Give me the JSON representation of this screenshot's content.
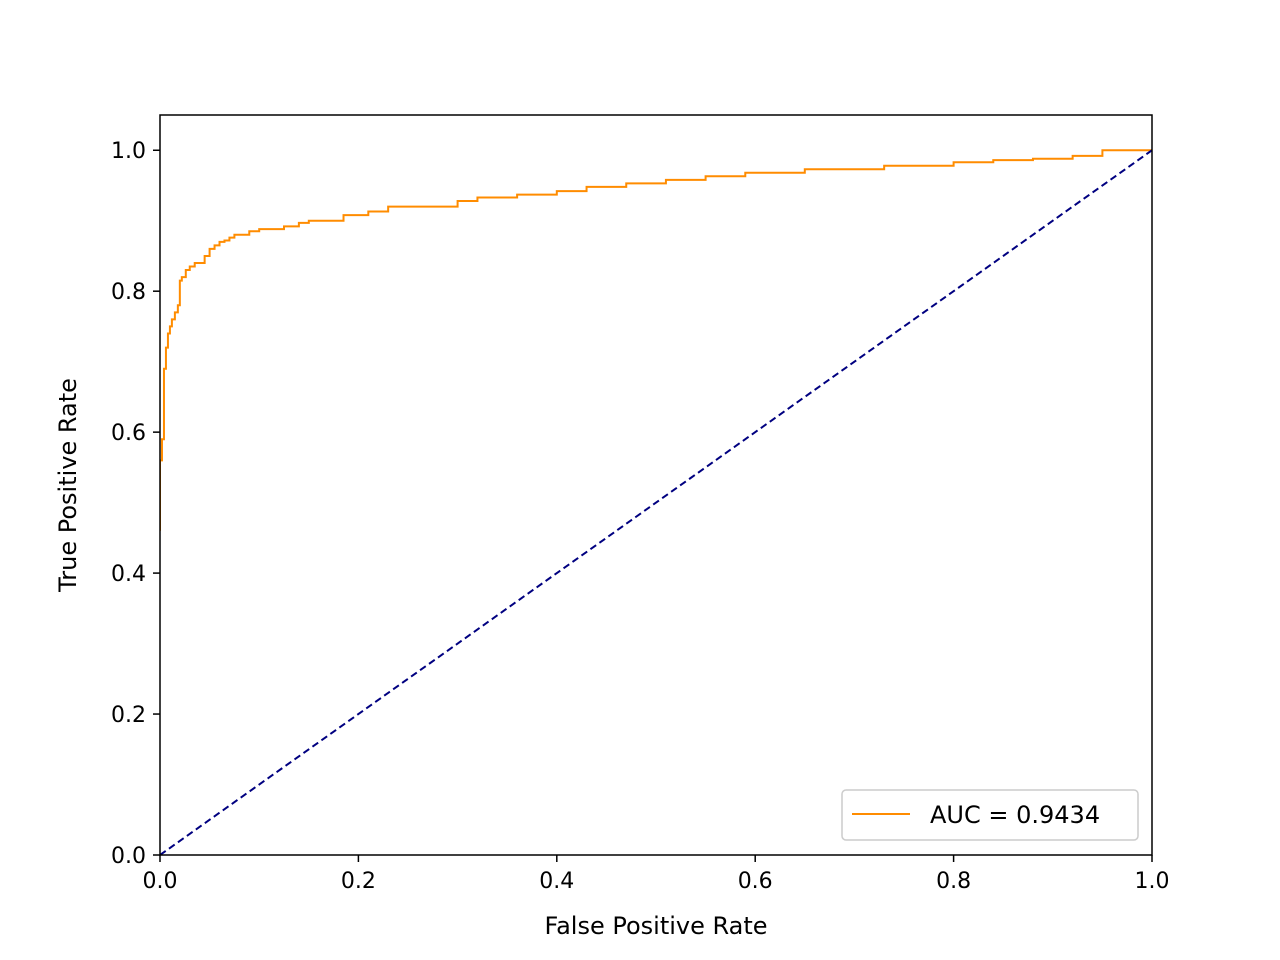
{
  "chart_data": {
    "type": "line",
    "title": "",
    "xlabel": "False Positive Rate",
    "ylabel": "True Positive Rate",
    "xlim": [
      0.0,
      1.0
    ],
    "ylim": [
      0.0,
      1.05
    ],
    "xticks": [
      0.0,
      0.2,
      0.4,
      0.6,
      0.8,
      1.0
    ],
    "xtick_labels": [
      "0.0",
      "0.2",
      "0.4",
      "0.6",
      "0.8",
      "1.0"
    ],
    "yticks": [
      0.0,
      0.2,
      0.4,
      0.6,
      0.8,
      1.0
    ],
    "ytick_labels": [
      "0.0",
      "0.2",
      "0.4",
      "0.6",
      "0.8",
      "1.0"
    ],
    "grid": false,
    "legend": {
      "placement": "lower-right"
    },
    "series": [
      {
        "name": "AUC = 0.9434",
        "color": "#ff8c00",
        "style": "solid",
        "x": [
          0.0,
          0.0,
          0.002,
          0.002,
          0.004,
          0.004,
          0.006,
          0.006,
          0.008,
          0.008,
          0.01,
          0.01,
          0.012,
          0.012,
          0.015,
          0.015,
          0.018,
          0.018,
          0.02,
          0.02,
          0.022,
          0.022,
          0.026,
          0.026,
          0.03,
          0.03,
          0.035,
          0.035,
          0.045,
          0.045,
          0.05,
          0.05,
          0.055,
          0.055,
          0.06,
          0.06,
          0.065,
          0.065,
          0.07,
          0.07,
          0.075,
          0.075,
          0.09,
          0.09,
          0.1,
          0.1,
          0.125,
          0.125,
          0.14,
          0.14,
          0.15,
          0.15,
          0.185,
          0.185,
          0.21,
          0.21,
          0.23,
          0.23,
          0.3,
          0.3,
          0.32,
          0.32,
          0.36,
          0.36,
          0.4,
          0.4,
          0.43,
          0.43,
          0.47,
          0.47,
          0.51,
          0.51,
          0.55,
          0.55,
          0.59,
          0.59,
          0.65,
          0.65,
          0.73,
          0.73,
          0.8,
          0.8,
          0.84,
          0.84,
          0.88,
          0.88,
          0.92,
          0.92,
          0.95,
          0.95,
          1.0
        ],
        "y": [
          0.46,
          0.56,
          0.56,
          0.59,
          0.59,
          0.69,
          0.69,
          0.72,
          0.72,
          0.74,
          0.74,
          0.75,
          0.75,
          0.76,
          0.76,
          0.77,
          0.77,
          0.78,
          0.78,
          0.815,
          0.815,
          0.82,
          0.82,
          0.83,
          0.83,
          0.835,
          0.835,
          0.84,
          0.84,
          0.85,
          0.85,
          0.86,
          0.86,
          0.865,
          0.865,
          0.87,
          0.87,
          0.872,
          0.872,
          0.876,
          0.876,
          0.88,
          0.88,
          0.885,
          0.885,
          0.888,
          0.888,
          0.892,
          0.892,
          0.897,
          0.897,
          0.9,
          0.9,
          0.908,
          0.908,
          0.913,
          0.913,
          0.92,
          0.92,
          0.928,
          0.928,
          0.933,
          0.933,
          0.937,
          0.937,
          0.942,
          0.942,
          0.948,
          0.948,
          0.953,
          0.953,
          0.958,
          0.958,
          0.963,
          0.963,
          0.968,
          0.968,
          0.973,
          0.973,
          0.978,
          0.978,
          0.983,
          0.983,
          0.986,
          0.986,
          0.988,
          0.988,
          0.992,
          0.992,
          1.0,
          1.0
        ]
      },
      {
        "name": "",
        "color": "#000080",
        "style": "dashed",
        "x": [
          0.0,
          1.0
        ],
        "y": [
          0.0,
          1.0
        ]
      }
    ]
  }
}
